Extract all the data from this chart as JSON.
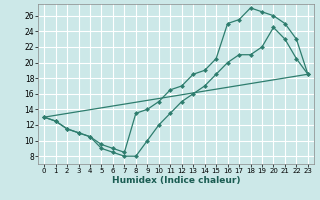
{
  "xlabel": "Humidex (Indice chaleur)",
  "bg_color": "#cce8e8",
  "grid_color": "#ffffff",
  "line_color": "#2e7d6e",
  "marker": "D",
  "marker_size": 2.5,
  "xlim": [
    -0.5,
    23.5
  ],
  "ylim": [
    7,
    27.5
  ],
  "xticks": [
    0,
    1,
    2,
    3,
    4,
    5,
    6,
    7,
    8,
    9,
    10,
    11,
    12,
    13,
    14,
    15,
    16,
    17,
    18,
    19,
    20,
    21,
    22,
    23
  ],
  "yticks": [
    8,
    10,
    12,
    14,
    16,
    18,
    20,
    22,
    24,
    26
  ],
  "line1_x": [
    0,
    1,
    2,
    3,
    4,
    5,
    6,
    7,
    8,
    9,
    10,
    11,
    12,
    13,
    14,
    15,
    16,
    17,
    18,
    19,
    20,
    21,
    22,
    23
  ],
  "line1_y": [
    13,
    12.5,
    11.5,
    11,
    10.5,
    9,
    8.5,
    8,
    8,
    10,
    12,
    13.5,
    15,
    16,
    17,
    18.5,
    20,
    21,
    21,
    22,
    24.5,
    23,
    20.5,
    18.5
  ],
  "line2_x": [
    0,
    1,
    2,
    3,
    4,
    5,
    6,
    7,
    8,
    9,
    10,
    11,
    12,
    13,
    14,
    15,
    16,
    17,
    18,
    19,
    20,
    21,
    22,
    23
  ],
  "line2_y": [
    13,
    12.5,
    11.5,
    11,
    10.5,
    9.5,
    9,
    8.5,
    13.5,
    14,
    15,
    16.5,
    17,
    18.5,
    19,
    20.5,
    25,
    25.5,
    27,
    26.5,
    26,
    25,
    23,
    18.5
  ],
  "line3_x": [
    0,
    23
  ],
  "line3_y": [
    13,
    18.5
  ]
}
